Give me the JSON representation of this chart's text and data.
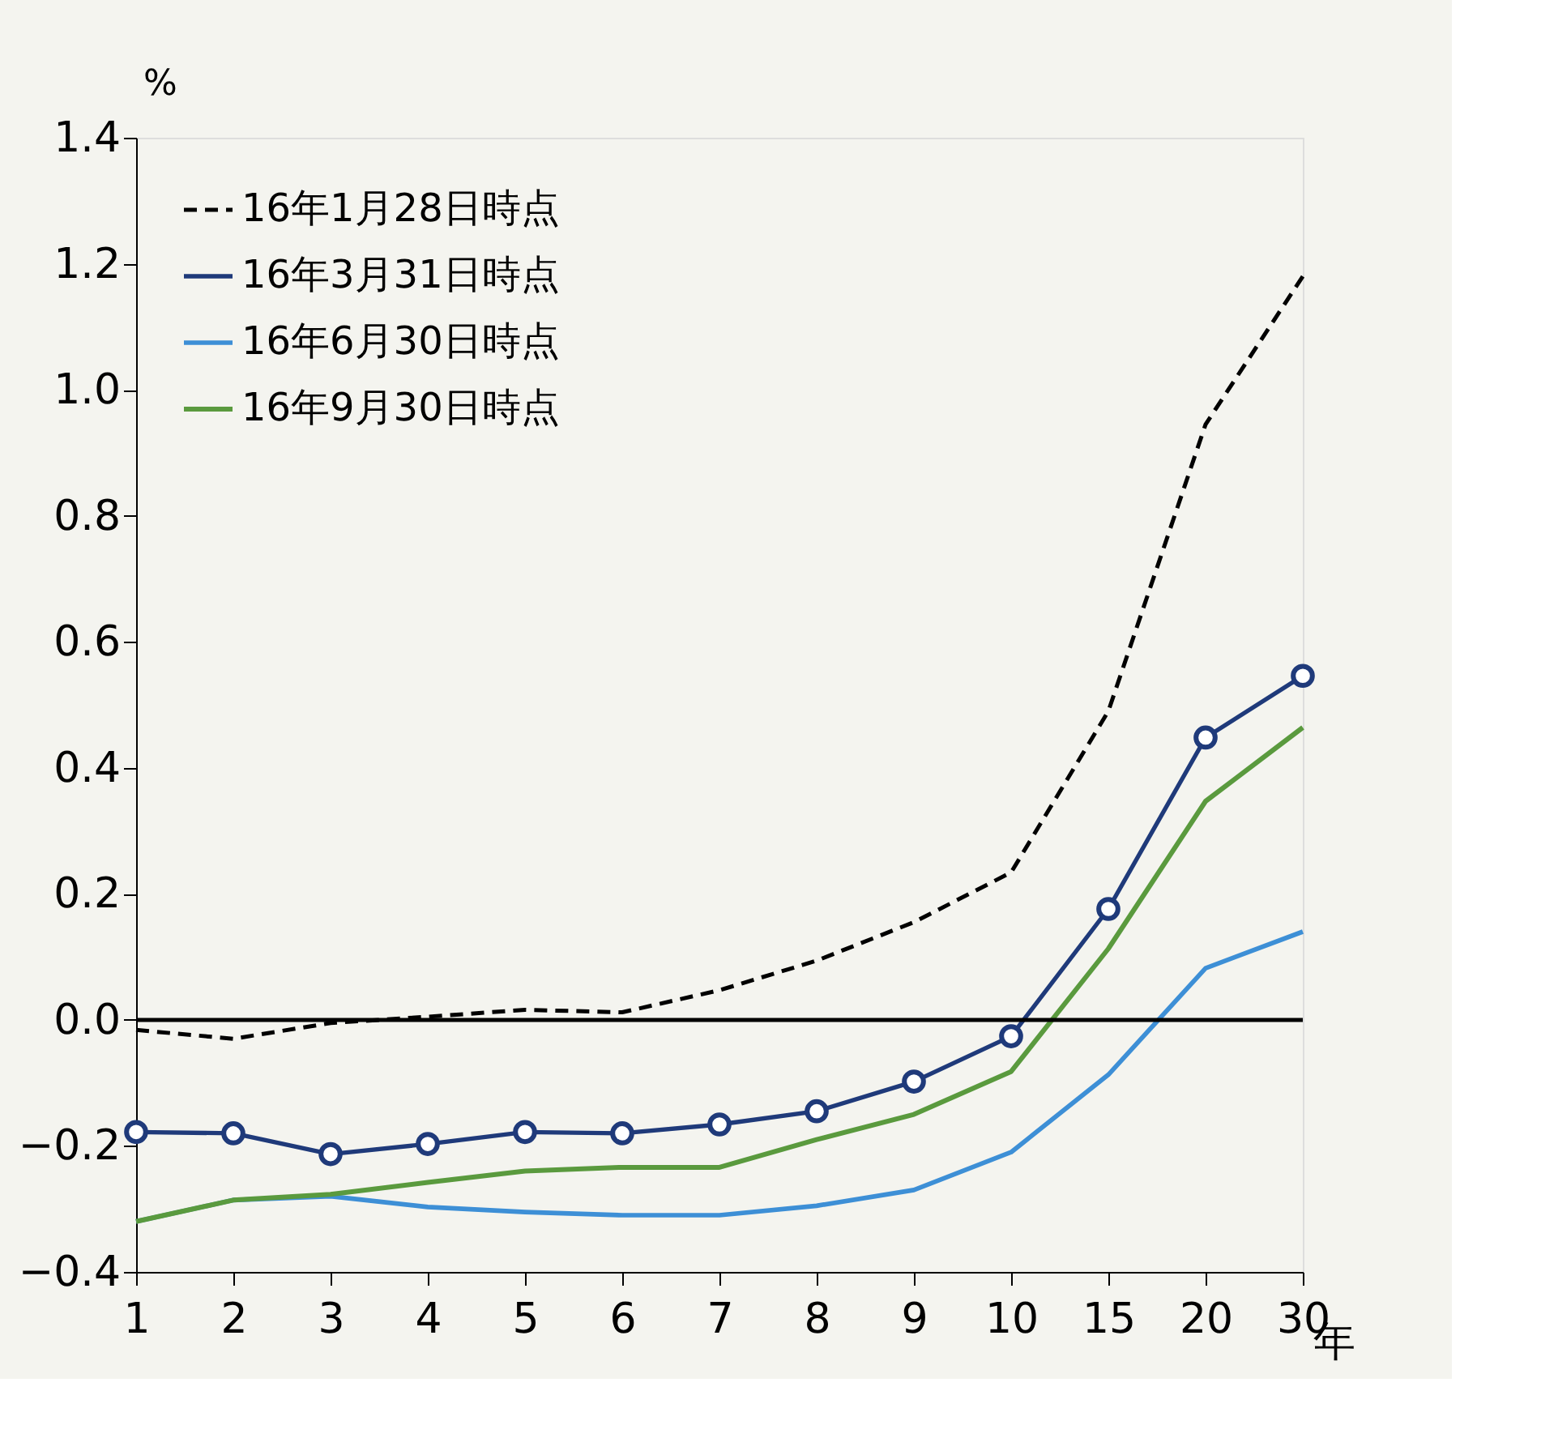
{
  "chart_data": {
    "type": "line",
    "xlabel": "年",
    "ylabel": "%",
    "categories": [
      "1",
      "2",
      "3",
      "4",
      "5",
      "6",
      "7",
      "8",
      "9",
      "10",
      "15",
      "20",
      "30"
    ],
    "ylim": [
      -0.4,
      1.4
    ],
    "yticks": [
      -0.4,
      -0.2,
      {
        "value": 0,
        "label": "0.0"
      },
      0.2,
      0.4,
      0.6,
      0.8,
      {
        "value": 1,
        "label": "1.0"
      },
      1.2,
      1.4
    ],
    "grid": false,
    "legend": "top left",
    "ref_lines": [
      {
        "axis": "y",
        "value": 0,
        "color": "#000000",
        "line_style": "solid"
      }
    ],
    "series": [
      {
        "name": "16年1月28日時点",
        "color": "#000000",
        "line_style": "dashed",
        "marker": "none",
        "values": [
          -0.016,
          -0.03,
          -0.005,
          0.005,
          0.016,
          0.012,
          0.047,
          0.094,
          0.155,
          0.234,
          0.49,
          0.945,
          1.18
        ]
      },
      {
        "name": "16年3月31日時点",
        "color": "#1f3a7a",
        "line_style": "solid",
        "marker": "circle",
        "values": [
          -0.178,
          -0.18,
          -0.213,
          -0.197,
          -0.178,
          -0.18,
          -0.166,
          -0.145,
          -0.098,
          -0.026,
          0.176,
          0.448,
          0.546
        ]
      },
      {
        "name": "16年6月30日時点",
        "color": "#3d8fd6",
        "line_style": "solid",
        "marker": "none",
        "values": [
          -0.32,
          -0.286,
          -0.28,
          -0.297,
          -0.305,
          -0.31,
          -0.31,
          -0.295,
          -0.27,
          -0.21,
          -0.087,
          0.082,
          0.14
        ]
      },
      {
        "name": "16年9月30日時点",
        "color": "#5a9a3e",
        "line_style": "solid",
        "marker": "none",
        "values": [
          -0.32,
          -0.286,
          -0.277,
          -0.258,
          -0.24,
          -0.234,
          -0.234,
          -0.19,
          -0.15,
          -0.082,
          0.113,
          0.347,
          0.464
        ]
      }
    ]
  }
}
